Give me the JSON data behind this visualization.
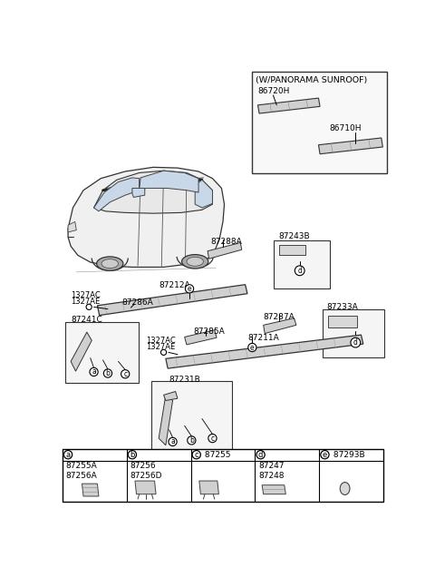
{
  "bg": "#ffffff",
  "lc": "#000000",
  "gc": "#888888",
  "fc": "#e0e0e0",
  "parts": {
    "sunroof_label": "(W/PANORAMA SUNROOF)",
    "p86720H": "86720H",
    "p86710H": "86710H",
    "p87288A": "87288A",
    "p87243B": "87243B",
    "p87287A": "87287A",
    "p87233A": "87233A",
    "p1327AC_1": "1327AC",
    "p1327AE_1": "1327AE",
    "p87286A": "87286A",
    "p87212A": "87212A",
    "p87241C": "87241C",
    "p1327AC_2": "1327AC",
    "p1327AE_2": "1327AE",
    "p87285A": "87285A",
    "p87231B": "87231B",
    "p87211A": "87211A",
    "leg_a_parts": "87255A\n87256A",
    "leg_b_parts": "87256\n87256D",
    "leg_c_extra": "87255",
    "leg_d_parts": "87247\n87248",
    "leg_e_extra": "87293B"
  }
}
